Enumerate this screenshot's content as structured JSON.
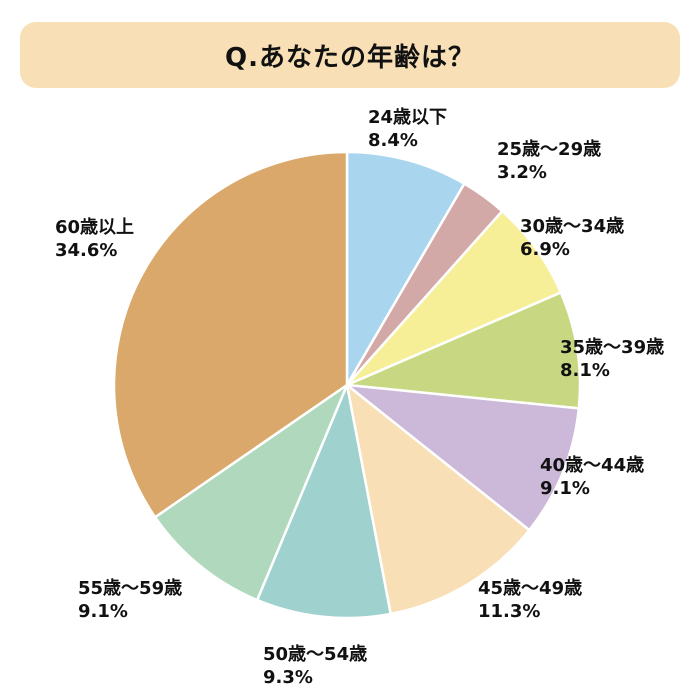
{
  "title": "Q.あなたの年齢は？",
  "chart_data": {
    "type": "pie",
    "title": "Q.あなたの年齢は？",
    "categories": [
      "24歳以下",
      "25歳～29歳",
      "30歳～34歳",
      "35歳～39歳",
      "40歳～44歳",
      "45歳～49歳",
      "50歳～54歳",
      "55歳～59歳",
      "60歳以上"
    ],
    "values": [
      8.4,
      3.2,
      6.9,
      8.1,
      9.1,
      11.3,
      9.3,
      9.1,
      34.6
    ],
    "value_labels": [
      "8.4%",
      "3.2%",
      "6.9%",
      "8.1%",
      "9.1%",
      "11.3%",
      "9.3%",
      "9.1%",
      "34.6%"
    ],
    "colors": [
      "#a9d6ee",
      "#d3a9a8",
      "#f7ef98",
      "#c8d882",
      "#ccb8d8",
      "#f8dfb5",
      "#9fd1cf",
      "#b0d8bc",
      "#daa86a"
    ],
    "start_angle": "12 o'clock",
    "direction": "clockwise",
    "legend": "none (labels beside slices)"
  }
}
